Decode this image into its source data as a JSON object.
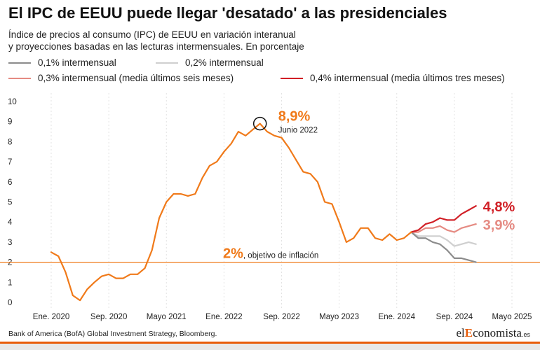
{
  "header": {
    "title": "El IPC de EEUU puede llegar 'desatado' a las presidenciales",
    "subtitle_line1": "Índice de precios al consumo (IPC) de EEUU en variación interanual",
    "subtitle_line2": "y proyecciones basadas en las lecturas intermensuales. En porcentaje"
  },
  "legend": [
    {
      "label": "0,1% intermensual",
      "color": "#8c8c8c"
    },
    {
      "label": "0,2% intermensual",
      "color": "#cfcfcf"
    },
    {
      "label": "0,3% intermensual (media últimos seis meses)",
      "color": "#e58a82"
    },
    {
      "label": "0,4% intermensual (media últimos tres meses)",
      "color": "#d11f26"
    }
  ],
  "footer": {
    "source": "Bank of America (BofA) Global Investment Strategy, Bloomberg.",
    "brand_prefix": "el",
    "brand_accent": "E",
    "brand_rest": "conomista",
    "brand_suffix": ".es"
  },
  "chart_data": {
    "type": "line",
    "ylim": [
      0,
      10
    ],
    "yticks": [
      "0",
      "1",
      "2",
      "3",
      "4",
      "5",
      "6",
      "7",
      "8",
      "9",
      "10"
    ],
    "xlim": [
      "2019-11",
      "2025-06"
    ],
    "xticks": [
      {
        "date": "2020-01",
        "label": "Ene. 2020"
      },
      {
        "date": "2020-09",
        "label": "Sep. 2020"
      },
      {
        "date": "2021-05",
        "label": "Mayo 2021"
      },
      {
        "date": "2022-01",
        "label": "Ene. 2022"
      },
      {
        "date": "2022-09",
        "label": "Sep. 2022"
      },
      {
        "date": "2023-05",
        "label": "Mayo 2023"
      },
      {
        "date": "2024-01",
        "label": "Ene. 2024"
      },
      {
        "date": "2024-09",
        "label": "Sep. 2024"
      },
      {
        "date": "2025-05",
        "label": "Mayo 2025"
      }
    ],
    "grid": "vertical",
    "colors": {
      "historic": "#f07a1a",
      "target": "#f07a1a"
    },
    "target_line": {
      "value": 2,
      "label_value": "2%",
      "label_text": ", objetivo de inflación"
    },
    "peak": {
      "date": "2022-06",
      "value": 8.9,
      "label_value": "8,9%",
      "label_text": "Junio 2022"
    },
    "series": [
      {
        "key": "historic",
        "color": "#f07a1a",
        "points": [
          [
            "2020-01",
            2.5
          ],
          [
            "2020-02",
            2.3
          ],
          [
            "2020-03",
            1.5
          ],
          [
            "2020-04",
            0.35
          ],
          [
            "2020-05",
            0.1
          ],
          [
            "2020-06",
            0.65
          ],
          [
            "2020-07",
            1.0
          ],
          [
            "2020-08",
            1.3
          ],
          [
            "2020-09",
            1.4
          ],
          [
            "2020-10",
            1.2
          ],
          [
            "2020-11",
            1.2
          ],
          [
            "2020-12",
            1.4
          ],
          [
            "2021-01",
            1.4
          ],
          [
            "2021-02",
            1.7
          ],
          [
            "2021-03",
            2.6
          ],
          [
            "2021-04",
            4.2
          ],
          [
            "2021-05",
            5.0
          ],
          [
            "2021-06",
            5.4
          ],
          [
            "2021-07",
            5.4
          ],
          [
            "2021-08",
            5.3
          ],
          [
            "2021-09",
            5.4
          ],
          [
            "2021-10",
            6.2
          ],
          [
            "2021-11",
            6.8
          ],
          [
            "2021-12",
            7.0
          ],
          [
            "2022-01",
            7.5
          ],
          [
            "2022-02",
            7.9
          ],
          [
            "2022-03",
            8.5
          ],
          [
            "2022-04",
            8.3
          ],
          [
            "2022-05",
            8.6
          ],
          [
            "2022-06",
            8.9
          ],
          [
            "2022-07",
            8.5
          ],
          [
            "2022-08",
            8.3
          ],
          [
            "2022-09",
            8.2
          ],
          [
            "2022-10",
            7.7
          ],
          [
            "2022-11",
            7.1
          ],
          [
            "2022-12",
            6.5
          ],
          [
            "2023-01",
            6.4
          ],
          [
            "2023-02",
            6.0
          ],
          [
            "2023-03",
            5.0
          ],
          [
            "2023-04",
            4.9
          ],
          [
            "2023-05",
            4.0
          ],
          [
            "2023-06",
            3.0
          ],
          [
            "2023-07",
            3.2
          ],
          [
            "2023-08",
            3.7
          ],
          [
            "2023-09",
            3.7
          ],
          [
            "2023-10",
            3.2
          ],
          [
            "2023-11",
            3.1
          ],
          [
            "2023-12",
            3.4
          ],
          [
            "2024-01",
            3.1
          ],
          [
            "2024-02",
            3.2
          ],
          [
            "2024-03",
            3.5
          ]
        ]
      },
      {
        "key": "proj_01",
        "name": "0,1% intermensual",
        "color": "#8c8c8c",
        "points": [
          [
            "2024-03",
            3.5
          ],
          [
            "2024-04",
            3.2
          ],
          [
            "2024-05",
            3.2
          ],
          [
            "2024-06",
            3.0
          ],
          [
            "2024-07",
            2.9
          ],
          [
            "2024-08",
            2.6
          ],
          [
            "2024-09",
            2.2
          ],
          [
            "2024-10",
            2.2
          ],
          [
            "2024-11",
            2.1
          ],
          [
            "2024-12",
            2.0
          ]
        ]
      },
      {
        "key": "proj_02",
        "name": "0,2% intermensual",
        "color": "#cfcfcf",
        "points": [
          [
            "2024-03",
            3.5
          ],
          [
            "2024-04",
            3.3
          ],
          [
            "2024-05",
            3.3
          ],
          [
            "2024-06",
            3.3
          ],
          [
            "2024-07",
            3.3
          ],
          [
            "2024-08",
            3.1
          ],
          [
            "2024-09",
            2.8
          ],
          [
            "2024-10",
            2.9
          ],
          [
            "2024-11",
            3.0
          ],
          [
            "2024-12",
            2.9
          ]
        ]
      },
      {
        "key": "proj_03",
        "name": "0,3% intermensual (media últimos seis meses)",
        "color": "#e58a82",
        "end_label": "3,9%",
        "points": [
          [
            "2024-03",
            3.5
          ],
          [
            "2024-04",
            3.5
          ],
          [
            "2024-05",
            3.7
          ],
          [
            "2024-06",
            3.7
          ],
          [
            "2024-07",
            3.8
          ],
          [
            "2024-08",
            3.6
          ],
          [
            "2024-09",
            3.5
          ],
          [
            "2024-10",
            3.7
          ],
          [
            "2024-11",
            3.8
          ],
          [
            "2024-12",
            3.9
          ]
        ]
      },
      {
        "key": "proj_04",
        "name": "0,4% intermensual (media últimos tres meses)",
        "color": "#d11f26",
        "end_label": "4,8%",
        "points": [
          [
            "2024-03",
            3.5
          ],
          [
            "2024-04",
            3.6
          ],
          [
            "2024-05",
            3.9
          ],
          [
            "2024-06",
            4.0
          ],
          [
            "2024-07",
            4.2
          ],
          [
            "2024-08",
            4.1
          ],
          [
            "2024-09",
            4.1
          ],
          [
            "2024-10",
            4.4
          ],
          [
            "2024-11",
            4.6
          ],
          [
            "2024-12",
            4.8
          ]
        ]
      }
    ]
  }
}
